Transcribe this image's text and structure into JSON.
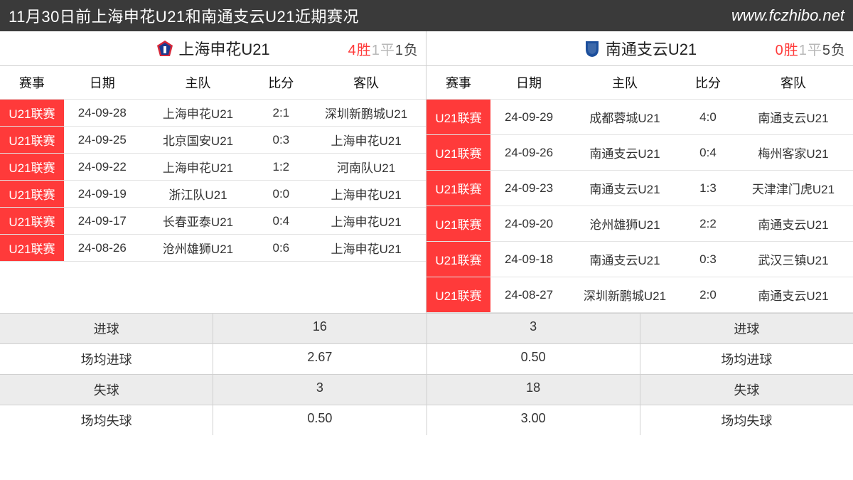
{
  "header": {
    "title": "11月30日前上海申花U21和南通支云U21近期赛况",
    "site": "www.fczhibo.net"
  },
  "colors": {
    "header_bg": "#3a3a3a",
    "badge_bg": "#ff3a3a",
    "win_color": "#ff3a3a",
    "draw_color": "#b8b8b8",
    "loss_color": "#444444",
    "alt_row_bg": "#ececec",
    "border": "#d0d0d0"
  },
  "columns": {
    "event": "赛事",
    "date": "日期",
    "home": "主队",
    "score": "比分",
    "away": "客队"
  },
  "left": {
    "team": "上海申花U21",
    "record": {
      "w_label": "4胜",
      "d_label": "1平",
      "l_label": "1负"
    },
    "logo_color_a": "#1a3a8f",
    "logo_color_b": "#d62839",
    "matches": [
      {
        "event": "U21联赛",
        "date": "24-09-28",
        "home": "上海申花U21",
        "score": "2:1",
        "away": "深圳新鹏城U21"
      },
      {
        "event": "U21联赛",
        "date": "24-09-25",
        "home": "北京国安U21",
        "score": "0:3",
        "away": "上海申花U21"
      },
      {
        "event": "U21联赛",
        "date": "24-09-22",
        "home": "上海申花U21",
        "score": "1:2",
        "away": "河南队U21"
      },
      {
        "event": "U21联赛",
        "date": "24-09-19",
        "home": "浙江队U21",
        "score": "0:0",
        "away": "上海申花U21"
      },
      {
        "event": "U21联赛",
        "date": "24-09-17",
        "home": "长春亚泰U21",
        "score": "0:4",
        "away": "上海申花U21"
      },
      {
        "event": "U21联赛",
        "date": "24-08-26",
        "home": "沧州雄狮U21",
        "score": "0:6",
        "away": "上海申花U21"
      }
    ]
  },
  "right": {
    "team": "南通支云U21",
    "record": {
      "w_label": "0胜",
      "d_label": "1平",
      "l_label": "5负"
    },
    "logo_color": "#1c4f9c",
    "matches": [
      {
        "event": "U21联赛",
        "date": "24-09-29",
        "home": "成都蓉城U21",
        "score": "4:0",
        "away": "南通支云U21"
      },
      {
        "event": "U21联赛",
        "date": "24-09-26",
        "home": "南通支云U21",
        "score": "0:4",
        "away": "梅州客家U21"
      },
      {
        "event": "U21联赛",
        "date": "24-09-23",
        "home": "南通支云U21",
        "score": "1:3",
        "away": "天津津门虎U21"
      },
      {
        "event": "U21联赛",
        "date": "24-09-20",
        "home": "沧州雄狮U21",
        "score": "2:2",
        "away": "南通支云U21"
      },
      {
        "event": "U21联赛",
        "date": "24-09-18",
        "home": "南通支云U21",
        "score": "0:3",
        "away": "武汉三镇U21"
      },
      {
        "event": "U21联赛",
        "date": "24-08-27",
        "home": "深圳新鹏城U21",
        "score": "2:0",
        "away": "南通支云U21"
      }
    ]
  },
  "stats": {
    "labels": {
      "goals": "进球",
      "avg_goals": "场均进球",
      "conceded": "失球",
      "avg_conceded": "场均失球"
    },
    "left": {
      "goals": "16",
      "avg_goals": "2.67",
      "conceded": "3",
      "avg_conceded": "0.50"
    },
    "right": {
      "goals": "3",
      "avg_goals": "0.50",
      "conceded": "18",
      "avg_conceded": "3.00"
    }
  }
}
